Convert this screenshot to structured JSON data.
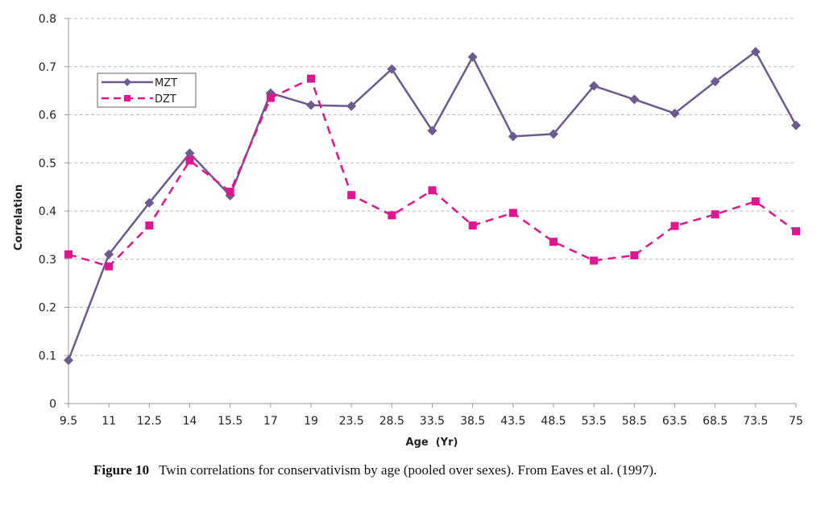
{
  "chart_data": {
    "type": "line",
    "categories": [
      "9.5",
      "11",
      "12.5",
      "14",
      "15.5",
      "17",
      "19",
      "23.5",
      "28.5",
      "33.5",
      "38.5",
      "43.5",
      "48.5",
      "53.5",
      "58.5",
      "63.5",
      "68.5",
      "73.5",
      "75"
    ],
    "series": [
      {
        "name": "MZT",
        "color": "#6b5b8e",
        "style": "solid",
        "marker": "diamond",
        "values": [
          0.09,
          0.31,
          0.417,
          0.52,
          0.432,
          0.645,
          0.62,
          0.618,
          0.695,
          0.567,
          0.72,
          0.555,
          0.56,
          0.66,
          0.632,
          0.603,
          0.669,
          0.731,
          0.578
        ]
      },
      {
        "name": "DZT",
        "color": "#e0158f",
        "style": "dashed",
        "marker": "square",
        "values": [
          0.31,
          0.285,
          0.37,
          0.505,
          0.44,
          0.635,
          0.675,
          0.433,
          0.391,
          0.443,
          0.37,
          0.396,
          0.336,
          0.297,
          0.308,
          0.369,
          0.393,
          0.42,
          0.358
        ]
      }
    ],
    "yticks": [
      "0",
      "0.1",
      "0.2",
      "0.3",
      "0.4",
      "0.5",
      "0.6",
      "0.7",
      "0.8"
    ],
    "ylim": [
      0,
      0.8
    ],
    "xlabel": "Age  (Yr)",
    "ylabel": "Correlation",
    "grid": true,
    "legend_position": "top-left"
  },
  "caption": {
    "label": "Figure 10",
    "text": "Twin correlations for conservativism by age (pooled over sexes). From Eaves et al. (1997)."
  }
}
